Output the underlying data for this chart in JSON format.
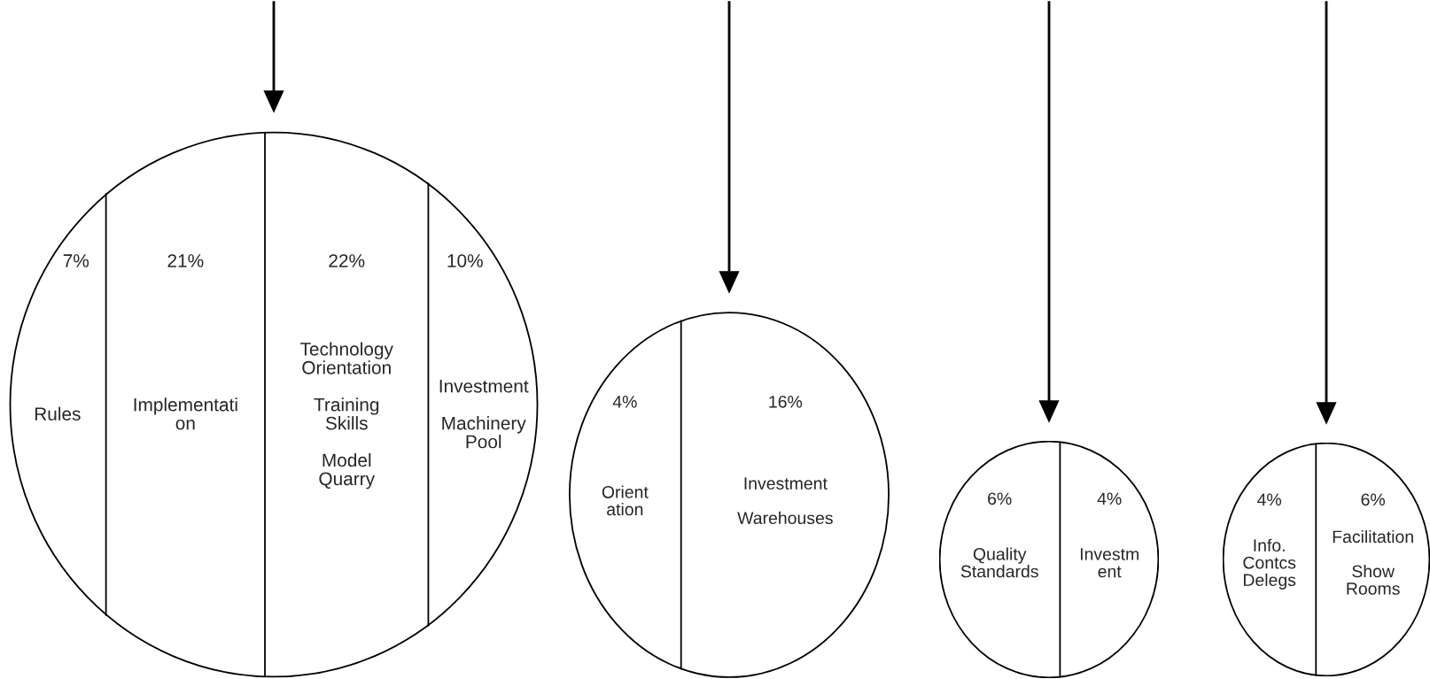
{
  "chart_data": [
    {
      "type": "other",
      "categories": [
        "Rules",
        "Implementati\non",
        "Technology\nOrientation\n\nTraining\nSkills\n\nModel\nQuarry",
        "Investment\n\nMachinery\nPool"
      ],
      "values": [
        7,
        21,
        22,
        10
      ],
      "value_labels": [
        "7%",
        "21%",
        "22%",
        "10%"
      ]
    },
    {
      "type": "other",
      "categories": [
        "Orient\nation",
        "Investment\n\nWarehouses"
      ],
      "values": [
        4,
        16
      ],
      "value_labels": [
        "4%",
        "16%"
      ]
    },
    {
      "type": "other",
      "categories": [
        "Quality\nStandards",
        "Investm\nent"
      ],
      "values": [
        6,
        4
      ],
      "value_labels": [
        "6%",
        "4%"
      ]
    },
    {
      "type": "other",
      "categories": [
        "Info.\nContcs\nDelegs",
        "Facilitation\n\nShow\nRooms"
      ],
      "values": [
        4,
        6
      ],
      "value_labels": [
        "4%",
        "6%"
      ]
    }
  ]
}
